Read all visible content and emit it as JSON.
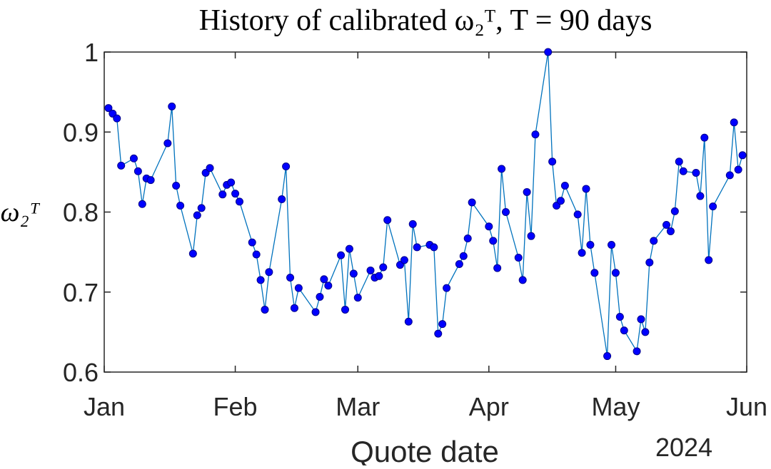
{
  "chart_data": {
    "type": "line",
    "title": "History of calibrated ω₂ᵀ, T = 90 days",
    "x_label": "Quote date",
    "y_label": "ω₂ᵀ",
    "x_secondary_label": "2024",
    "x": [
      1,
      2,
      3,
      4,
      7,
      8,
      9,
      10,
      11,
      15,
      16,
      17,
      18,
      21,
      22,
      23,
      24,
      25,
      28,
      29,
      30,
      31,
      32,
      35,
      36,
      37,
      38,
      39,
      42,
      43,
      44,
      45,
      46,
      50,
      51,
      52,
      53,
      56,
      57,
      58,
      59,
      60,
      63,
      64,
      65,
      66,
      67,
      70,
      71,
      72,
      73,
      74,
      77,
      78,
      79,
      80,
      81,
      84,
      85,
      86,
      87,
      91,
      92,
      93,
      94,
      95,
      98,
      99,
      100,
      101,
      102,
      105,
      106,
      107,
      108,
      109,
      112,
      113,
      114,
      115,
      116,
      119,
      120,
      121,
      122,
      123,
      126,
      127,
      128,
      129,
      130,
      133,
      134,
      135,
      136,
      137,
      140,
      141,
      142,
      143,
      144,
      148,
      149,
      150,
      151
    ],
    "values": [
      0.93,
      0.923,
      0.917,
      0.858,
      0.867,
      0.851,
      0.81,
      0.842,
      0.84,
      0.886,
      0.932,
      0.833,
      0.808,
      0.748,
      0.796,
      0.805,
      0.849,
      0.855,
      0.822,
      0.834,
      0.837,
      0.823,
      0.813,
      0.762,
      0.747,
      0.715,
      0.678,
      0.725,
      0.816,
      0.857,
      0.718,
      0.68,
      0.705,
      0.675,
      0.694,
      0.716,
      0.708,
      0.746,
      0.678,
      0.754,
      0.723,
      0.693,
      0.727,
      0.718,
      0.72,
      0.731,
      0.79,
      0.734,
      0.74,
      0.663,
      0.785,
      0.756,
      0.759,
      0.756,
      0.648,
      0.66,
      0.705,
      0.735,
      0.745,
      0.767,
      0.812,
      0.782,
      0.764,
      0.73,
      0.854,
      0.8,
      0.743,
      0.715,
      0.825,
      0.77,
      0.897,
      1.0,
      0.863,
      0.808,
      0.814,
      0.833,
      0.797,
      0.749,
      0.829,
      0.759,
      0.724,
      0.62,
      0.759,
      0.724,
      0.669,
      0.652,
      0.626,
      0.666,
      0.65,
      0.737,
      0.764,
      0.784,
      0.776,
      0.801,
      0.863,
      0.851,
      0.849,
      0.82,
      0.893,
      0.74,
      0.807,
      0.846,
      0.912,
      0.853,
      0.871
    ],
    "color": "#0072bd",
    "marker_color": "#0000ff",
    "xlim": [
      0,
      152
    ],
    "xticks": [
      {
        "value": 0,
        "label": "Jan"
      },
      {
        "value": 31,
        "label": "Feb"
      },
      {
        "value": 60,
        "label": "Mar"
      },
      {
        "value": 91,
        "label": "Apr"
      },
      {
        "value": 121,
        "label": "May"
      },
      {
        "value": 152,
        "label": "Jun"
      }
    ],
    "ylim": [
      0.6,
      1
    ],
    "yticks": [
      0.6,
      0.7,
      0.8,
      0.9,
      1
    ]
  }
}
